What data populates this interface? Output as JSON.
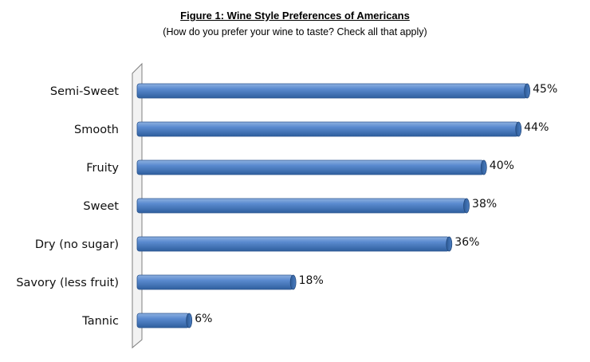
{
  "chart_data": {
    "type": "bar",
    "orientation": "horizontal",
    "title": "Figure 1: Wine Style Preferences of Americans",
    "subtitle": "(How do you prefer your wine to taste? Check all that apply)",
    "categories": [
      "Semi-Sweet",
      "Smooth",
      "Fruity",
      "Sweet",
      "Dry (no sugar)",
      "Savory (less fruit)",
      "Tannic"
    ],
    "values": [
      45,
      44,
      40,
      38,
      36,
      18,
      6
    ],
    "data_labels": [
      "45%",
      "44%",
      "40%",
      "38%",
      "36%",
      "18%",
      "6%"
    ],
    "value_unit": "%",
    "xlim": [
      0,
      46
    ],
    "grid": false,
    "legend": "none",
    "bar_color": "#4A7EBB"
  }
}
